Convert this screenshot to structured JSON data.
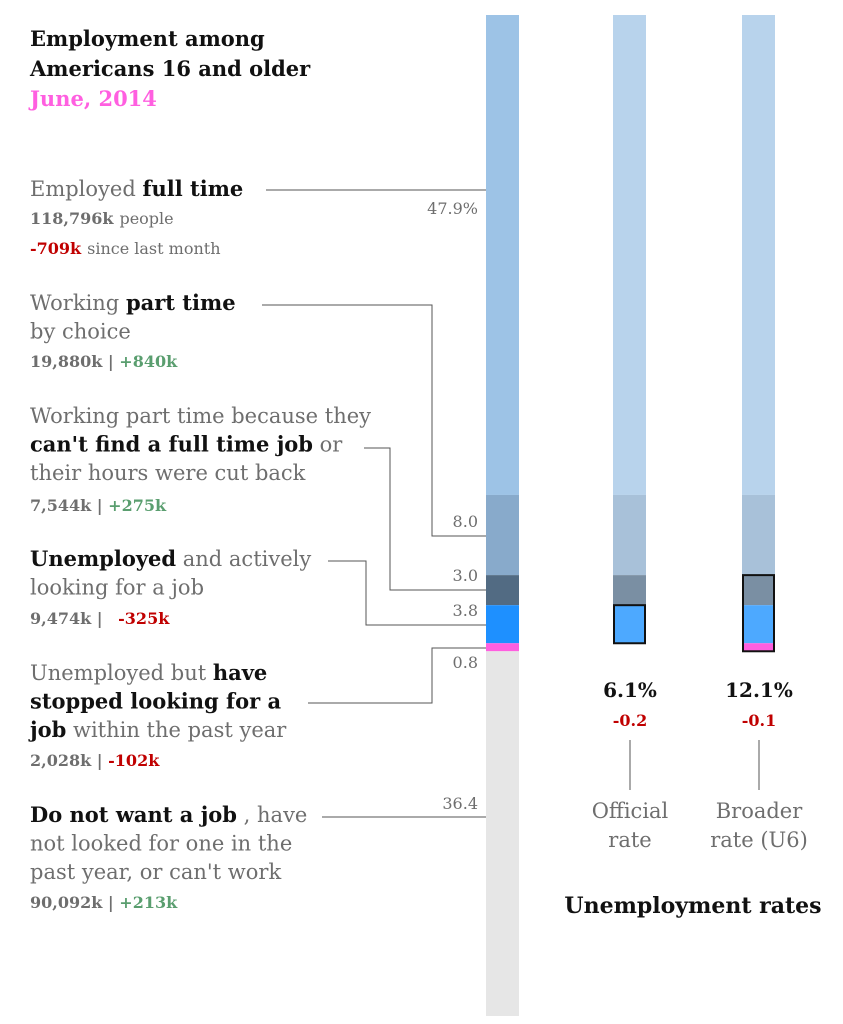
{
  "colors": {
    "full_time": "#9dc3e6",
    "part_time_choice": "#88aacb",
    "part_time_econ": "#526b83",
    "unemployed": "#1e90ff",
    "discouraged": "#ff5fe0",
    "not_want": "#e6e6e6",
    "small_bar_top": "#b8d3ec",
    "small_bar_mid": "#a8c1d9",
    "small_bar_dark": "#7a8fa3",
    "small_bar_blue": "#4da9ff",
    "negative": "#c00000",
    "positive": "#5a9e6f",
    "highlight": "#ff5fe0"
  },
  "header": {
    "title_line1": "Employment among",
    "title_line2": "Americans 16 and older",
    "subtitle": "June, 2014"
  },
  "categories": [
    {
      "key": "full_time",
      "pct": 47.9,
      "pct_label": "47.9%",
      "lines": [
        [
          {
            "t": "Employed ",
            "s": "lbl"
          },
          {
            "t": "full time",
            "s": "lbl-bold"
          }
        ]
      ],
      "count": "118,796k",
      "count_note": "people",
      "change": "-709k",
      "change_note": "since last month",
      "change_sign": "neg"
    },
    {
      "key": "part_time_choice",
      "pct": 8.0,
      "pct_label": "8.0",
      "lines": [
        [
          {
            "t": "Working ",
            "s": "lbl"
          },
          {
            "t": "part time",
            "s": "lbl-bold"
          }
        ],
        [
          {
            "t": "by choice",
            "s": "lbl"
          }
        ]
      ],
      "count": "19,880k",
      "change": "+840k",
      "change_sign": "pos"
    },
    {
      "key": "part_time_econ",
      "pct": 3.0,
      "pct_label": "3.0",
      "lines": [
        [
          {
            "t": "Working part time because they",
            "s": "lbl"
          }
        ],
        [
          {
            "t": "can't find a full time job",
            "s": "lbl-bold"
          },
          {
            "t": " or",
            "s": "lbl"
          }
        ],
        [
          {
            "t": "their hours were cut back",
            "s": "lbl"
          }
        ]
      ],
      "count": "7,544k",
      "change": "+275k",
      "change_sign": "pos"
    },
    {
      "key": "unemployed",
      "pct": 3.8,
      "pct_label": "3.8",
      "lines": [
        [
          {
            "t": "Unemployed",
            "s": "lbl-bold"
          },
          {
            "t": "  and actively",
            "s": "lbl"
          }
        ],
        [
          {
            "t": "looking for a job",
            "s": "lbl"
          }
        ]
      ],
      "count": "9,474k",
      "change": "-325k",
      "change_sign": "neg"
    },
    {
      "key": "discouraged",
      "pct": 0.8,
      "pct_label": "0.8",
      "lines": [
        [
          {
            "t": "Unemployed but ",
            "s": "lbl"
          },
          {
            "t": "have",
            "s": "lbl-bold"
          }
        ],
        [
          {
            "t": "stopped looking for a",
            "s": "lbl-bold"
          }
        ],
        [
          {
            "t": "job",
            "s": "lbl-bold"
          },
          {
            "t": " within the past year",
            "s": "lbl"
          }
        ]
      ],
      "count": "2,028k",
      "change": "-102k",
      "change_sign": "neg"
    },
    {
      "key": "not_want",
      "pct": 36.4,
      "pct_label": "36.4",
      "lines": [
        [
          {
            "t": "Do not want a job",
            "s": "lbl-bold"
          },
          {
            "t": " , have",
            "s": "lbl"
          }
        ],
        [
          {
            "t": "not looked for one in the",
            "s": "lbl"
          }
        ],
        [
          {
            "t": "past year, or can't work",
            "s": "lbl"
          }
        ]
      ],
      "count": "90,092k",
      "change": "+213k",
      "change_sign": "pos"
    }
  ],
  "rates": {
    "title": "Unemployment rates",
    "items": [
      {
        "value": "6.1%",
        "change": "-0.2",
        "name_line1": "Official",
        "name_line2": "rate"
      },
      {
        "value": "12.1%",
        "change": "-0.1",
        "name_line1": "Broader",
        "name_line2": "rate (U6)"
      }
    ]
  },
  "chart_data": {
    "type": "bar",
    "title": "Employment among Americans 16 and older",
    "subtitle": "June, 2014",
    "categories": [
      "Employed full time",
      "Working part time by choice",
      "Working part time because they can't find a full time job or their hours were cut back",
      "Unemployed and actively looking for a job",
      "Unemployed but have stopped looking for a job within the past year",
      "Do not want a job, have not looked for one in the past year, or can't work"
    ],
    "series": [
      {
        "values": [
          47.9,
          8.0,
          3.0,
          3.8,
          0.8,
          36.4
        ]
      }
    ],
    "counts_k": [
      118796,
      19880,
      7544,
      9474,
      2028,
      90092
    ],
    "change_k": [
      -709,
      840,
      275,
      -325,
      -102,
      213
    ],
    "unemployment_rates": {
      "categories": [
        "Official rate",
        "Broader rate (U6)"
      ],
      "values": [
        6.1,
        12.1
      ],
      "change": [
        -0.2,
        -0.1
      ]
    }
  }
}
